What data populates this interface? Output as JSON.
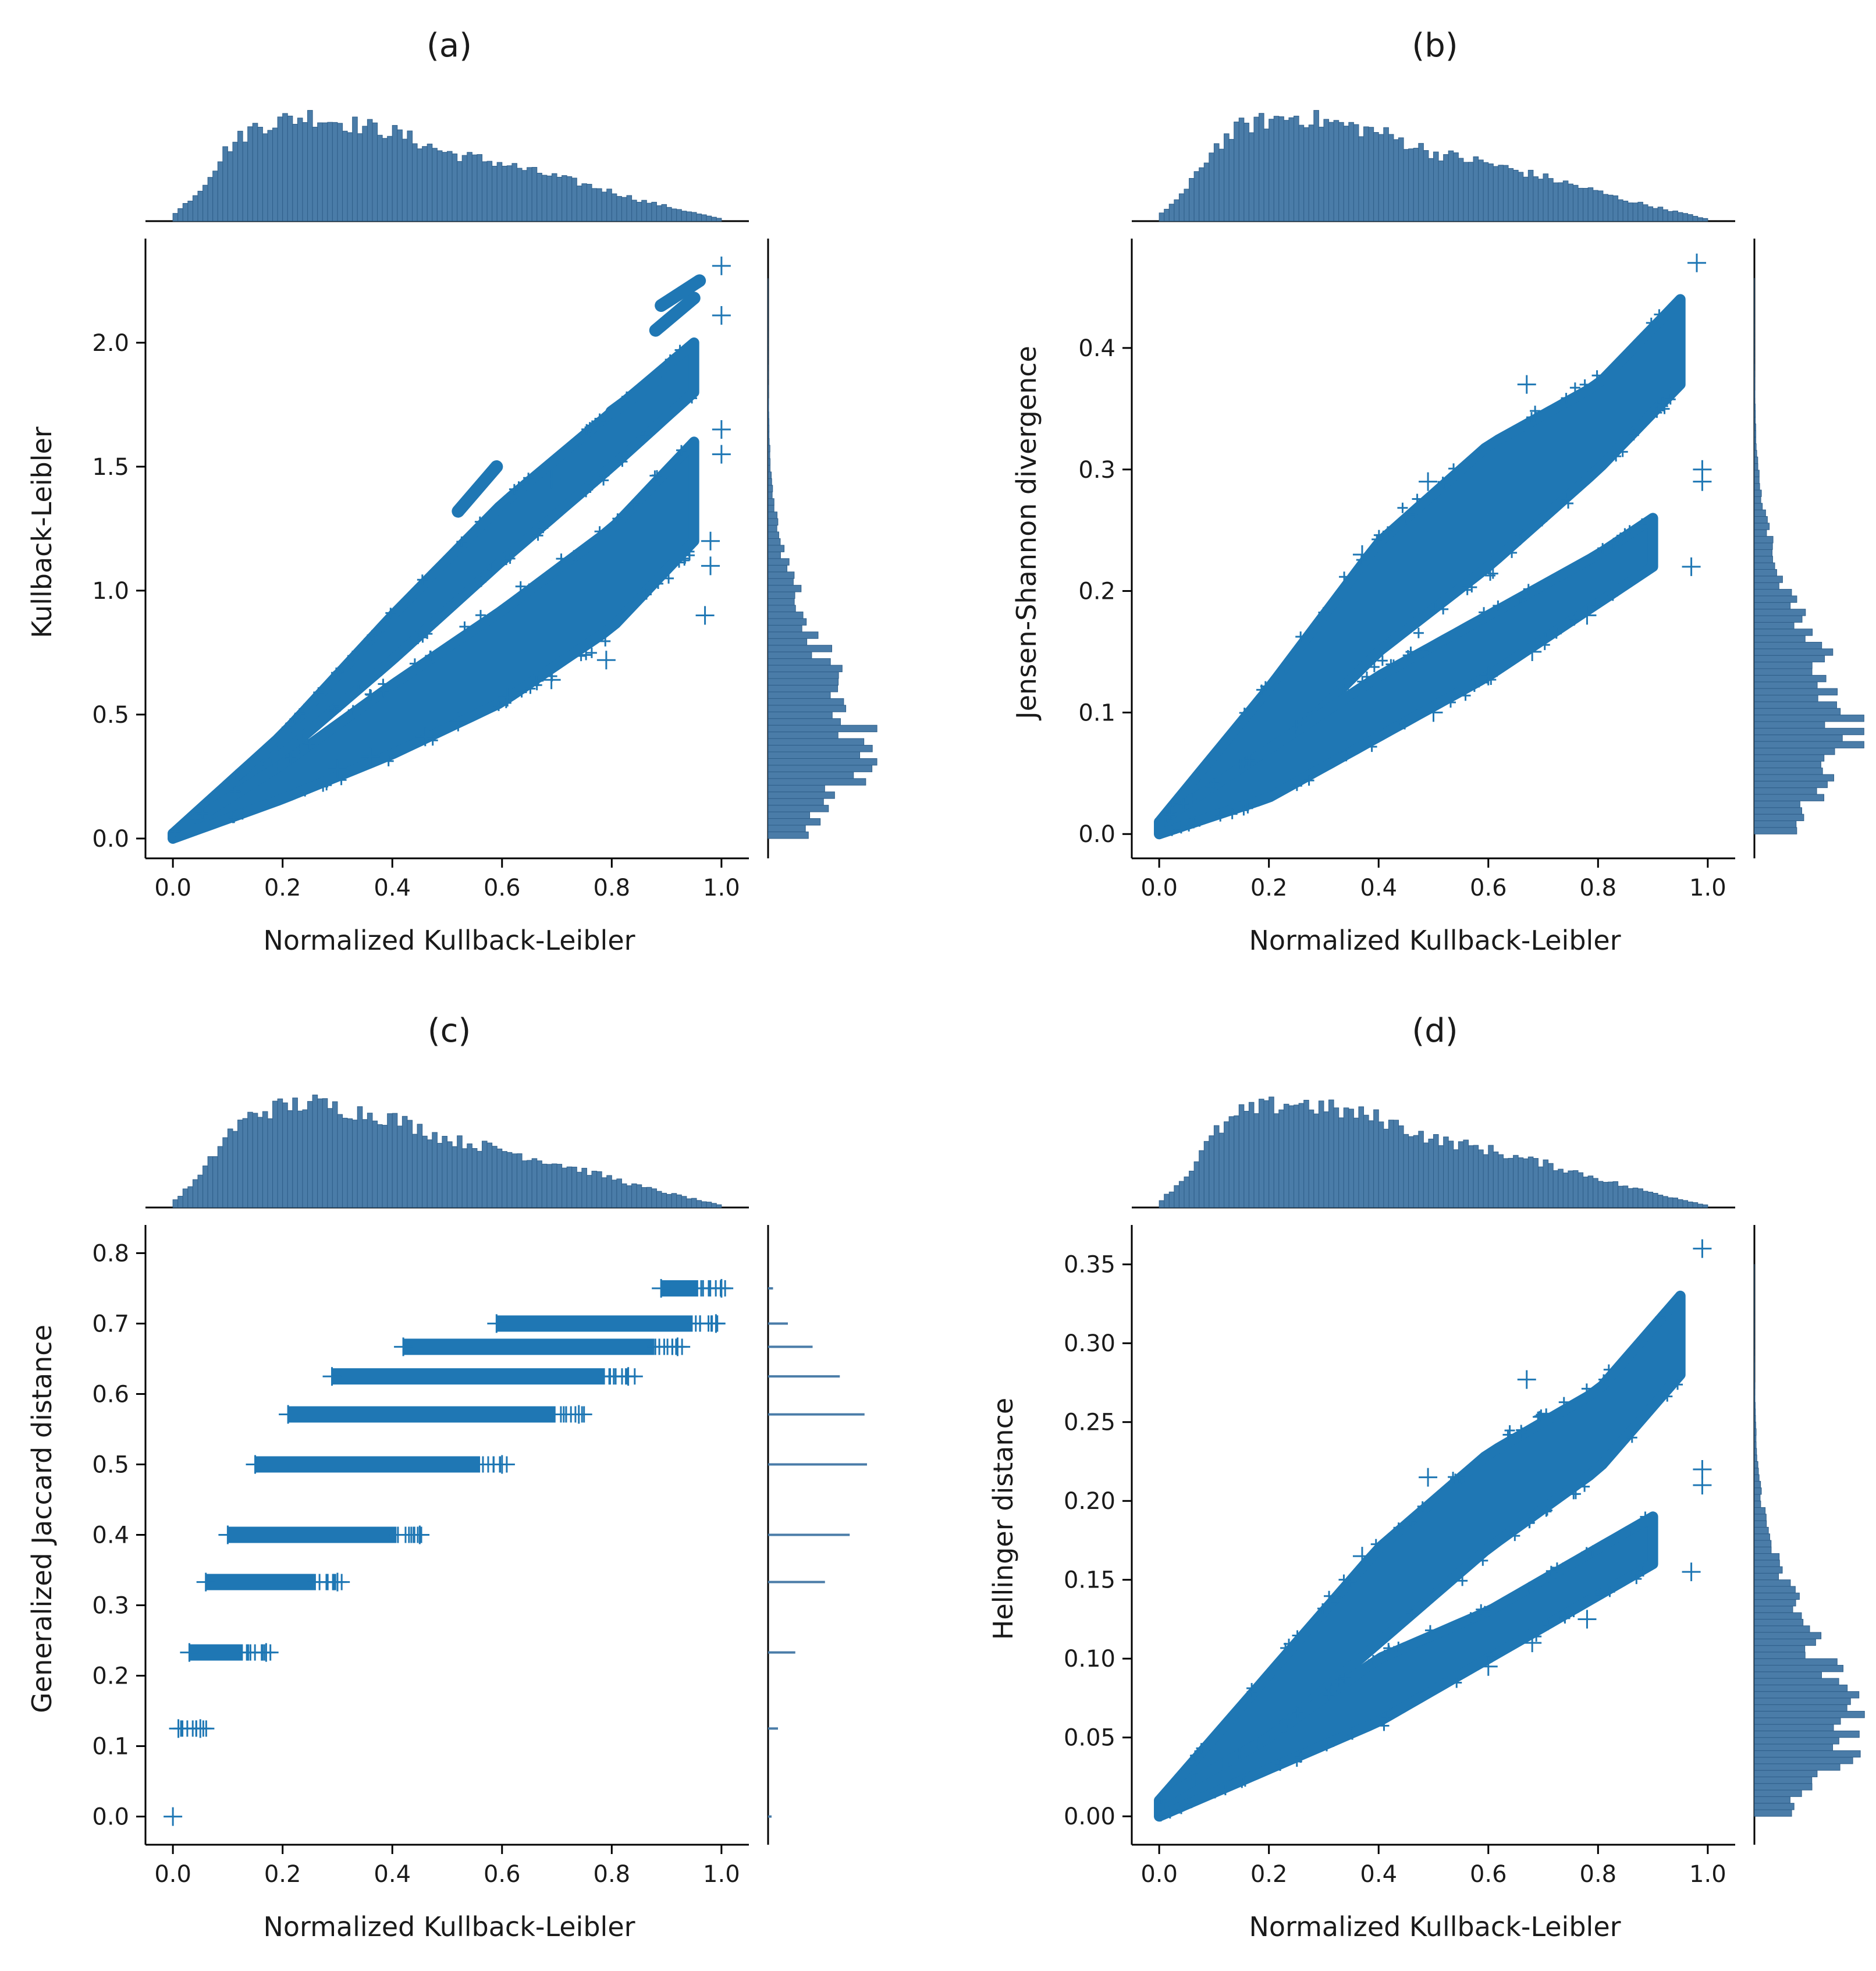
{
  "chart_data": [
    {
      "type": "scatter",
      "title": "(a)",
      "xlabel": "Normalized Kullback-Leibler",
      "ylabel": "Kullback-Leibler",
      "xlim": [
        -0.05,
        1.05
      ],
      "ylim": [
        -0.08,
        2.42
      ],
      "xticks": [
        0.0,
        0.2,
        0.4,
        0.6,
        0.8,
        1.0
      ],
      "xtick_labels": [
        "0.0",
        "0.2",
        "0.4",
        "0.6",
        "0.8",
        "1.0"
      ],
      "yticks": [
        0.0,
        0.5,
        1.0,
        1.5,
        2.0
      ],
      "ytick_labels": [
        "0.0",
        "0.5",
        "1.0",
        "1.5",
        "2.0"
      ],
      "marker": "+",
      "color": "#1f77b4",
      "marginals": "histograms on top (x) and right (y)",
      "band_series": [
        {
          "name": "upper band",
          "x": [
            0.0,
            0.2,
            0.4,
            0.6,
            0.8,
            0.95
          ],
          "y_low": [
            0.0,
            0.34,
            0.72,
            1.12,
            1.5,
            1.8
          ],
          "y_high": [
            0.02,
            0.42,
            0.9,
            1.35,
            1.72,
            2.0
          ]
        },
        {
          "name": "lower band",
          "x": [
            0.0,
            0.2,
            0.4,
            0.6,
            0.8,
            0.95
          ],
          "y_low": [
            0.0,
            0.16,
            0.34,
            0.55,
            0.85,
            1.2
          ],
          "y_high": [
            0.02,
            0.3,
            0.62,
            0.92,
            1.25,
            1.6
          ]
        }
      ],
      "streaks": [
        {
          "x0": 0.52,
          "y0": 1.32,
          "x1": 0.59,
          "y1": 1.5
        },
        {
          "x0": 0.8,
          "y0": 1.72,
          "x1": 0.88,
          "y1": 1.85
        },
        {
          "x0": 0.88,
          "y0": 2.05,
          "x1": 0.95,
          "y1": 2.18
        },
        {
          "x0": 0.89,
          "y0": 2.15,
          "x1": 0.96,
          "y1": 2.25
        }
      ],
      "outliers": [
        {
          "x": 0.97,
          "y": 0.9
        },
        {
          "x": 0.79,
          "y": 0.72
        },
        {
          "x": 0.69,
          "y": 0.64
        },
        {
          "x": 0.61,
          "y": 0.57
        },
        {
          "x": 0.52,
          "y": 0.47
        },
        {
          "x": 0.46,
          "y": 0.41
        },
        {
          "x": 0.36,
          "y": 0.33
        },
        {
          "x": 0.3,
          "y": 0.28
        },
        {
          "x": 1.0,
          "y": 2.31
        },
        {
          "x": 1.0,
          "y": 2.11
        },
        {
          "x": 0.98,
          "y": 1.2
        },
        {
          "x": 0.98,
          "y": 1.1
        },
        {
          "x": 1.0,
          "y": 1.65
        },
        {
          "x": 1.0,
          "y": 1.55
        },
        {
          "x": 0.69,
          "y": 1.45
        },
        {
          "x": 0.54,
          "y": 1.15
        }
      ],
      "right_hist_mode": 0.3
    },
    {
      "type": "scatter",
      "title": "(b)",
      "xlabel": "Normalized Kullback-Leibler",
      "ylabel": "Jensen-Shannon divergence",
      "xlim": [
        -0.05,
        1.05
      ],
      "ylim": [
        -0.02,
        0.49
      ],
      "xticks": [
        0.0,
        0.2,
        0.4,
        0.6,
        0.8,
        1.0
      ],
      "xtick_labels": [
        "0.0",
        "0.2",
        "0.4",
        "0.6",
        "0.8",
        "1.0"
      ],
      "yticks": [
        0.0,
        0.1,
        0.2,
        0.3,
        0.4
      ],
      "ytick_labels": [
        "0.0",
        "0.1",
        "0.2",
        "0.3",
        "0.4"
      ],
      "marker": "+",
      "color": "#1f77b4",
      "marginals": "histograms on top (x) and right (y)",
      "band_series": [
        {
          "name": "upper band",
          "x": [
            0.0,
            0.2,
            0.4,
            0.6,
            0.8,
            0.95
          ],
          "y_low": [
            0.0,
            0.06,
            0.15,
            0.22,
            0.3,
            0.37
          ],
          "y_high": [
            0.01,
            0.12,
            0.24,
            0.32,
            0.37,
            0.44
          ]
        },
        {
          "name": "lower band",
          "x": [
            0.0,
            0.2,
            0.4,
            0.6,
            0.8,
            0.9
          ],
          "y_low": [
            0.0,
            0.03,
            0.08,
            0.13,
            0.19,
            0.22
          ],
          "y_high": [
            0.01,
            0.07,
            0.13,
            0.18,
            0.23,
            0.26
          ]
        }
      ],
      "streaks": [],
      "outliers": [
        {
          "x": 0.97,
          "y": 0.22
        },
        {
          "x": 0.78,
          "y": 0.18
        },
        {
          "x": 0.68,
          "y": 0.15
        },
        {
          "x": 0.6,
          "y": 0.13
        },
        {
          "x": 0.5,
          "y": 0.1
        },
        {
          "x": 0.99,
          "y": 0.3
        },
        {
          "x": 0.99,
          "y": 0.29
        },
        {
          "x": 0.98,
          "y": 0.47
        },
        {
          "x": 0.67,
          "y": 0.37
        },
        {
          "x": 0.49,
          "y": 0.29
        },
        {
          "x": 0.37,
          "y": 0.23
        }
      ],
      "right_hist_mode": 0.07
    },
    {
      "type": "scatter",
      "title": "(c)",
      "xlabel": "Normalized Kullback-Leibler",
      "ylabel": "Generalized Jaccard distance",
      "xlim": [
        -0.05,
        1.05
      ],
      "ylim": [
        -0.04,
        0.84
      ],
      "xticks": [
        0.0,
        0.2,
        0.4,
        0.6,
        0.8,
        1.0
      ],
      "xtick_labels": [
        "0.0",
        "0.2",
        "0.4",
        "0.6",
        "0.8",
        "1.0"
      ],
      "yticks": [
        0.0,
        0.1,
        0.2,
        0.3,
        0.4,
        0.5,
        0.6,
        0.7,
        0.8
      ],
      "ytick_labels": [
        "0.0",
        "0.1",
        "0.2",
        "0.3",
        "0.4",
        "0.5",
        "0.6",
        "0.7",
        "0.8"
      ],
      "marker": "+",
      "color": "#1f77b4",
      "marginals": "histograms on top (x) and right (y)",
      "level_series": [
        {
          "y": 0.0,
          "x_min": 0.0,
          "x_max": 0.0,
          "count": 1
        },
        {
          "y": 0.125,
          "x_min": 0.01,
          "x_max": 0.05,
          "count": 4
        },
        {
          "y": 0.233,
          "x_min": 0.03,
          "x_max": 0.17,
          "count": 11
        },
        {
          "y": 0.333,
          "x_min": 0.06,
          "x_max": 0.3,
          "count": 23
        },
        {
          "y": 0.4,
          "x_min": 0.1,
          "x_max": 0.45,
          "count": 33
        },
        {
          "y": 0.5,
          "x_min": 0.15,
          "x_max": 0.6,
          "count": 40
        },
        {
          "y": 0.571,
          "x_min": 0.21,
          "x_max": 0.74,
          "count": 39
        },
        {
          "y": 0.625,
          "x_min": 0.29,
          "x_max": 0.83,
          "count": 29
        },
        {
          "y": 0.667,
          "x_min": 0.42,
          "x_max": 0.92,
          "count": 18
        },
        {
          "y": 0.7,
          "x_min": 0.59,
          "x_max": 0.99,
          "count": 8
        },
        {
          "y": 0.75,
          "x_min": 0.89,
          "x_max": 1.0,
          "count": 2
        }
      ]
    },
    {
      "type": "scatter",
      "title": "(d)",
      "xlabel": "Normalized Kullback-Leibler",
      "ylabel": "Hellinger distance",
      "xlim": [
        -0.05,
        1.05
      ],
      "ylim": [
        -0.018,
        0.375
      ],
      "xticks": [
        0.0,
        0.2,
        0.4,
        0.6,
        0.8,
        1.0
      ],
      "xtick_labels": [
        "0.0",
        "0.2",
        "0.4",
        "0.6",
        "0.8",
        "1.0"
      ],
      "yticks": [
        0.0,
        0.05,
        0.1,
        0.15,
        0.2,
        0.25,
        0.3,
        0.35
      ],
      "ytick_labels": [
        "0.00",
        "0.05",
        "0.10",
        "0.15",
        "0.20",
        "0.25",
        "0.30",
        "0.35"
      ],
      "marker": "+",
      "color": "#1f77b4",
      "marginals": "histograms on top (x) and right (y)",
      "band_series": [
        {
          "name": "upper band",
          "x": [
            0.0,
            0.2,
            0.4,
            0.6,
            0.8,
            0.95
          ],
          "y_low": [
            0.0,
            0.05,
            0.11,
            0.17,
            0.22,
            0.28
          ],
          "y_high": [
            0.01,
            0.09,
            0.17,
            0.23,
            0.27,
            0.33
          ]
        },
        {
          "name": "lower band",
          "x": [
            0.0,
            0.2,
            0.4,
            0.6,
            0.8,
            0.9
          ],
          "y_low": [
            0.0,
            0.03,
            0.06,
            0.1,
            0.14,
            0.16
          ],
          "y_high": [
            0.01,
            0.05,
            0.1,
            0.13,
            0.17,
            0.19
          ]
        }
      ],
      "streaks": [],
      "outliers": [
        {
          "x": 0.97,
          "y": 0.155
        },
        {
          "x": 0.78,
          "y": 0.125
        },
        {
          "x": 0.68,
          "y": 0.11
        },
        {
          "x": 0.6,
          "y": 0.095
        },
        {
          "x": 0.99,
          "y": 0.22
        },
        {
          "x": 0.99,
          "y": 0.21
        },
        {
          "x": 0.99,
          "y": 0.36
        },
        {
          "x": 0.67,
          "y": 0.277
        },
        {
          "x": 0.49,
          "y": 0.215
        },
        {
          "x": 0.37,
          "y": 0.165
        }
      ],
      "right_hist_mode": 0.045
    }
  ],
  "top_hist": {
    "description": "distribution of Normalized Kullback-Leibler (shared by all panels)",
    "x": [
      0.0,
      0.05,
      0.1,
      0.15,
      0.2,
      0.25,
      0.3,
      0.35,
      0.4,
      0.45,
      0.5,
      0.55,
      0.6,
      0.65,
      0.7,
      0.75,
      0.8,
      0.85,
      0.9,
      0.95,
      1.0
    ],
    "density": [
      0.05,
      0.3,
      0.7,
      0.9,
      0.96,
      1.0,
      0.95,
      0.9,
      0.85,
      0.75,
      0.65,
      0.6,
      0.55,
      0.48,
      0.42,
      0.35,
      0.28,
      0.2,
      0.14,
      0.08,
      0.02
    ]
  }
}
